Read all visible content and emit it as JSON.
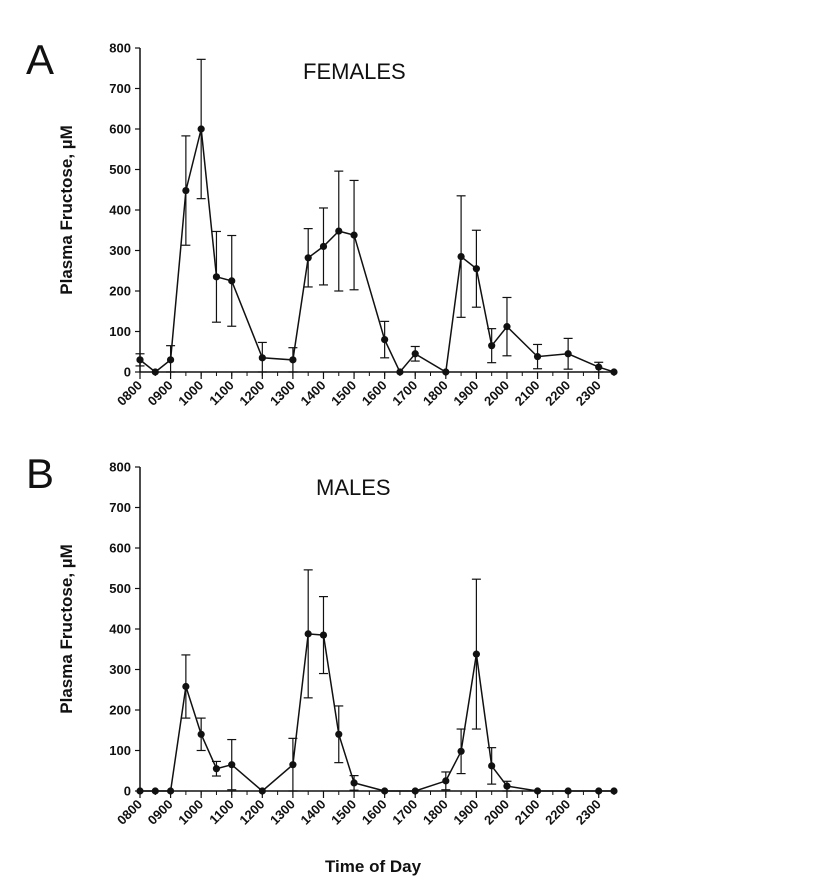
{
  "figure": {
    "xlabel": "Time of Day"
  },
  "chart_data": [
    {
      "type": "line",
      "panel_label": "A",
      "title": "FEMALES",
      "ylabel": "Plasma Fructose, µM",
      "ylim": [
        0,
        800
      ],
      "yticks": [
        "0",
        "100",
        "200",
        "300",
        "400",
        "500",
        "600",
        "700",
        "800"
      ],
      "xlim": [
        8.0,
        23.5
      ],
      "xticks": [
        "0800",
        "0900",
        "1000",
        "1100",
        "1200",
        "1300",
        "1400",
        "1500",
        "1600",
        "1700",
        "1800",
        "1900",
        "2000",
        "2100",
        "2200",
        "2300"
      ],
      "series": [
        {
          "points": [
            {
              "t": 8.0,
              "y": 30,
              "err": 15
            },
            {
              "t": 8.5,
              "y": 0,
              "err": 0
            },
            {
              "t": 9.0,
              "y": 30,
              "err": 35
            },
            {
              "t": 9.5,
              "y": 448,
              "err": 135
            },
            {
              "t": 10.0,
              "y": 600,
              "err": 172
            },
            {
              "t": 10.5,
              "y": 235,
              "err": 112
            },
            {
              "t": 11.0,
              "y": 225,
              "err": 112
            },
            {
              "t": 12.0,
              "y": 35,
              "err": 38
            },
            {
              "t": 13.0,
              "y": 30,
              "err": 30
            },
            {
              "t": 13.5,
              "y": 282,
              "err": 72
            },
            {
              "t": 14.0,
              "y": 310,
              "err": 95
            },
            {
              "t": 14.5,
              "y": 348,
              "err": 148
            },
            {
              "t": 15.0,
              "y": 338,
              "err": 135
            },
            {
              "t": 16.0,
              "y": 80,
              "err": 45
            },
            {
              "t": 16.5,
              "y": 0,
              "err": 0
            },
            {
              "t": 17.0,
              "y": 45,
              "err": 18
            },
            {
              "t": 18.0,
              "y": 0,
              "err": 0
            },
            {
              "t": 18.5,
              "y": 285,
              "err": 150
            },
            {
              "t": 19.0,
              "y": 255,
              "err": 95
            },
            {
              "t": 19.5,
              "y": 65,
              "err": 42
            },
            {
              "t": 20.0,
              "y": 112,
              "err": 72
            },
            {
              "t": 21.0,
              "y": 38,
              "err": 30
            },
            {
              "t": 22.0,
              "y": 45,
              "err": 38
            },
            {
              "t": 23.0,
              "y": 12,
              "err": 12
            },
            {
              "t": 23.5,
              "y": 0,
              "err": 0
            }
          ]
        }
      ]
    },
    {
      "type": "line",
      "panel_label": "B",
      "title": "MALES",
      "ylabel": "Plasma Fructose, µM",
      "ylim": [
        0,
        800
      ],
      "yticks": [
        "0",
        "100",
        "200",
        "300",
        "400",
        "500",
        "600",
        "700",
        "800"
      ],
      "xlim": [
        8.0,
        23.5
      ],
      "xticks": [
        "0800",
        "0900",
        "1000",
        "1100",
        "1200",
        "1300",
        "1400",
        "1500",
        "1600",
        "1700",
        "1800",
        "1900",
        "2000",
        "2100",
        "2200",
        "2300"
      ],
      "series": [
        {
          "points": [
            {
              "t": 8.0,
              "y": 0,
              "err": 0
            },
            {
              "t": 8.5,
              "y": 0,
              "err": 0
            },
            {
              "t": 9.0,
              "y": 0,
              "err": 0
            },
            {
              "t": 9.5,
              "y": 258,
              "err": 78
            },
            {
              "t": 10.0,
              "y": 140,
              "err": 40
            },
            {
              "t": 10.5,
              "y": 55,
              "err": 18
            },
            {
              "t": 11.0,
              "y": 65,
              "err": 62
            },
            {
              "t": 12.0,
              "y": 0,
              "err": 0
            },
            {
              "t": 13.0,
              "y": 65,
              "err": 65
            },
            {
              "t": 13.5,
              "y": 388,
              "err": 158
            },
            {
              "t": 14.0,
              "y": 385,
              "err": 95
            },
            {
              "t": 14.5,
              "y": 140,
              "err": 70
            },
            {
              "t": 15.0,
              "y": 20,
              "err": 18
            },
            {
              "t": 16.0,
              "y": 0,
              "err": 0
            },
            {
              "t": 17.0,
              "y": 0,
              "err": 0
            },
            {
              "t": 18.0,
              "y": 25,
              "err": 22
            },
            {
              "t": 18.5,
              "y": 98,
              "err": 55
            },
            {
              "t": 19.0,
              "y": 338,
              "err": 185
            },
            {
              "t": 19.5,
              "y": 62,
              "err": 45
            },
            {
              "t": 20.0,
              "y": 12,
              "err": 12
            },
            {
              "t": 21.0,
              "y": 0,
              "err": 0
            },
            {
              "t": 22.0,
              "y": 0,
              "err": 0
            },
            {
              "t": 23.0,
              "y": 0,
              "err": 0
            },
            {
              "t": 23.5,
              "y": 0,
              "err": 0
            }
          ]
        }
      ]
    }
  ]
}
